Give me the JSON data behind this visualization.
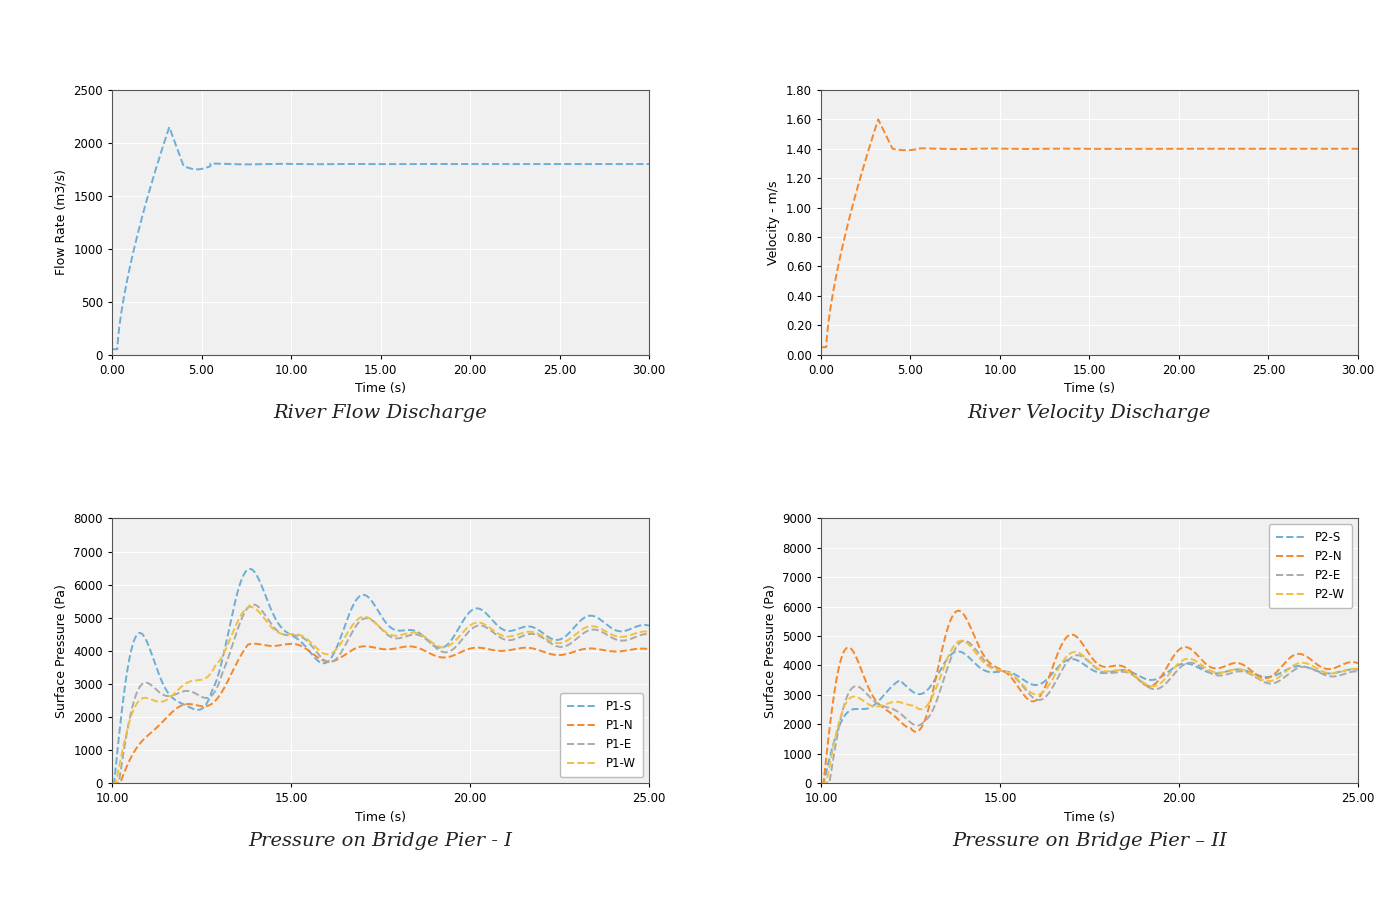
{
  "fig_bg": "#ffffff",
  "plot_bg": "#f0f0f0",
  "grid_color": "#ffffff",
  "flow_title": "River Flow Discharge",
  "flow_xlabel": "Time (s)",
  "flow_ylabel": "Flow Rate (m3/s)",
  "flow_xlim": [
    0,
    30
  ],
  "flow_ylim": [
    0,
    2500
  ],
  "flow_xticks": [
    0.0,
    5.0,
    10.0,
    15.0,
    20.0,
    25.0,
    30.0
  ],
  "flow_yticks": [
    0,
    500,
    1000,
    1500,
    2000,
    2500
  ],
  "flow_color": "#6baed6",
  "vel_title": "River Velocity Discharge",
  "vel_xlabel": "Time (s)",
  "vel_ylabel": "Velocity - m/s",
  "vel_xlim": [
    0,
    30
  ],
  "vel_ylim": [
    0.0,
    1.8
  ],
  "vel_xticks": [
    0.0,
    5.0,
    10.0,
    15.0,
    20.0,
    25.0,
    30.0
  ],
  "vel_yticks": [
    0.0,
    0.2,
    0.4,
    0.6,
    0.8,
    1.0,
    1.2,
    1.4,
    1.6,
    1.8
  ],
  "vel_color": "#f4882a",
  "p1_title": "Pressure on Bridge Pier - I",
  "p1_xlabel": "Time (s)",
  "p1_ylabel": "Surface Pressure (Pa)",
  "p1_xlim": [
    10,
    25
  ],
  "p1_ylim": [
    0,
    8000
  ],
  "p1_xticks": [
    10.0,
    15.0,
    20.0,
    25.0
  ],
  "p1_yticks": [
    0,
    1000,
    2000,
    3000,
    4000,
    5000,
    6000,
    7000,
    8000
  ],
  "p1_colors": [
    "#6baed6",
    "#f4882a",
    "#aaaaaa",
    "#f0c040"
  ],
  "p1_labels": [
    "P1-S",
    "P1-N",
    "P1-E",
    "P1-W"
  ],
  "p2_title": "Pressure on Bridge Pier – II",
  "p2_xlabel": "Time (s)",
  "p2_ylabel": "Surface Pressure (Pa)",
  "p2_xlim": [
    10,
    25
  ],
  "p2_ylim": [
    0,
    9000
  ],
  "p2_xticks": [
    10.0,
    15.0,
    20.0,
    25.0
  ],
  "p2_yticks": [
    0,
    1000,
    2000,
    3000,
    4000,
    5000,
    6000,
    7000,
    8000,
    9000
  ],
  "p2_colors": [
    "#6baed6",
    "#f4882a",
    "#aaaaaa",
    "#f0c040"
  ],
  "p2_labels": [
    "P2-S",
    "P2-N",
    "P2-E",
    "P2-W"
  ],
  "caption_fontsize": 14,
  "label_fontsize": 9,
  "tick_fontsize": 8.5,
  "legend_fontsize": 8.5
}
